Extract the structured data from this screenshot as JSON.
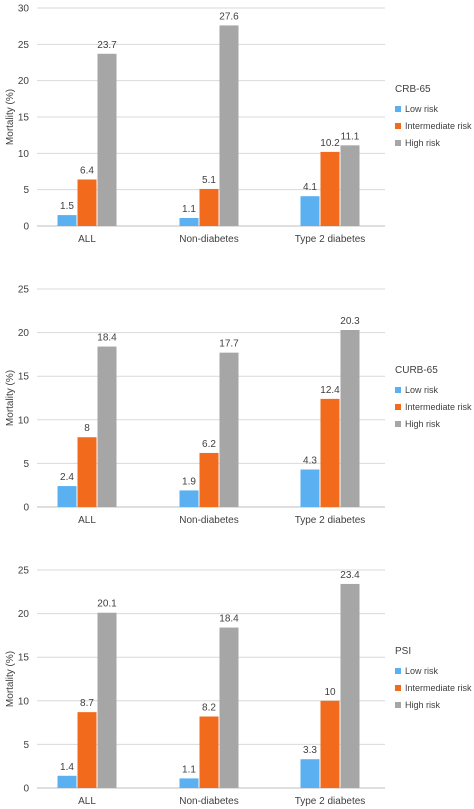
{
  "colors": {
    "low": "#5ab0f0",
    "intermediate": "#f26a1b",
    "high": "#a6a6a6",
    "grid": "#d9d9d9",
    "axis": "#bfbfbf",
    "text": "#404040"
  },
  "chart_data": [
    {
      "type": "bar",
      "categories": [
        "ALL",
        "Non-diabetes",
        "Type 2 diabetes"
      ],
      "ylabel": "Mortality (%)",
      "ylim": [
        0,
        30
      ],
      "yticks": [
        0,
        5,
        10,
        15,
        20,
        25,
        30
      ],
      "grid": true,
      "legend_title": "CRB-65",
      "legend_position": "right",
      "series": [
        {
          "name": "Low risk",
          "key": "low",
          "values": [
            1.5,
            1.1,
            4.1
          ],
          "labels": [
            "1.5",
            "1.1",
            "4.1"
          ]
        },
        {
          "name": "Intermediate risk",
          "key": "intermediate",
          "values": [
            6.4,
            5.1,
            10.2
          ],
          "labels": [
            "6.4",
            "5.1",
            "10.2"
          ]
        },
        {
          "name": "High risk",
          "key": "high",
          "values": [
            23.7,
            27.6,
            11.1
          ],
          "labels": [
            "23.7",
            "27.6",
            "11.1"
          ]
        }
      ]
    },
    {
      "type": "bar",
      "categories": [
        "ALL",
        "Non-diabetes",
        "Type 2 diabetes"
      ],
      "ylabel": "Mortality (%)",
      "ylim": [
        0,
        25
      ],
      "yticks": [
        0,
        5,
        10,
        15,
        20,
        25
      ],
      "grid": true,
      "legend_title": "CURB-65",
      "legend_position": "right",
      "series": [
        {
          "name": "Low risk",
          "key": "low",
          "values": [
            2.4,
            1.9,
            4.3
          ],
          "labels": [
            "2.4",
            "1.9",
            "4.3"
          ]
        },
        {
          "name": "Intermediate risk",
          "key": "intermediate",
          "values": [
            8,
            6.2,
            12.4
          ],
          "labels": [
            "8",
            "6.2",
            "12.4"
          ]
        },
        {
          "name": "High risk",
          "key": "high",
          "values": [
            18.4,
            17.7,
            20.3
          ],
          "labels": [
            "18.4",
            "17.7",
            "20.3"
          ]
        }
      ]
    },
    {
      "type": "bar",
      "categories": [
        "ALL",
        "Non-diabetes",
        "Type 2 diabetes"
      ],
      "ylabel": "Mortality (%)",
      "ylim": [
        0,
        25
      ],
      "yticks": [
        0,
        5,
        10,
        15,
        20,
        25
      ],
      "grid": true,
      "legend_title": "PSI",
      "legend_position": "right",
      "series": [
        {
          "name": "Low risk",
          "key": "low",
          "values": [
            1.4,
            1.1,
            3.3
          ],
          "labels": [
            "1.4",
            "1.1",
            "3.3"
          ]
        },
        {
          "name": "Intermediate risk",
          "key": "intermediate",
          "values": [
            8.7,
            8.2,
            10
          ],
          "labels": [
            "8.7",
            "8.2",
            "10"
          ]
        },
        {
          "name": "High risk",
          "key": "high",
          "values": [
            20.1,
            18.4,
            23.4
          ],
          "labels": [
            "20.1",
            "18.4",
            "23.4"
          ]
        }
      ]
    }
  ]
}
